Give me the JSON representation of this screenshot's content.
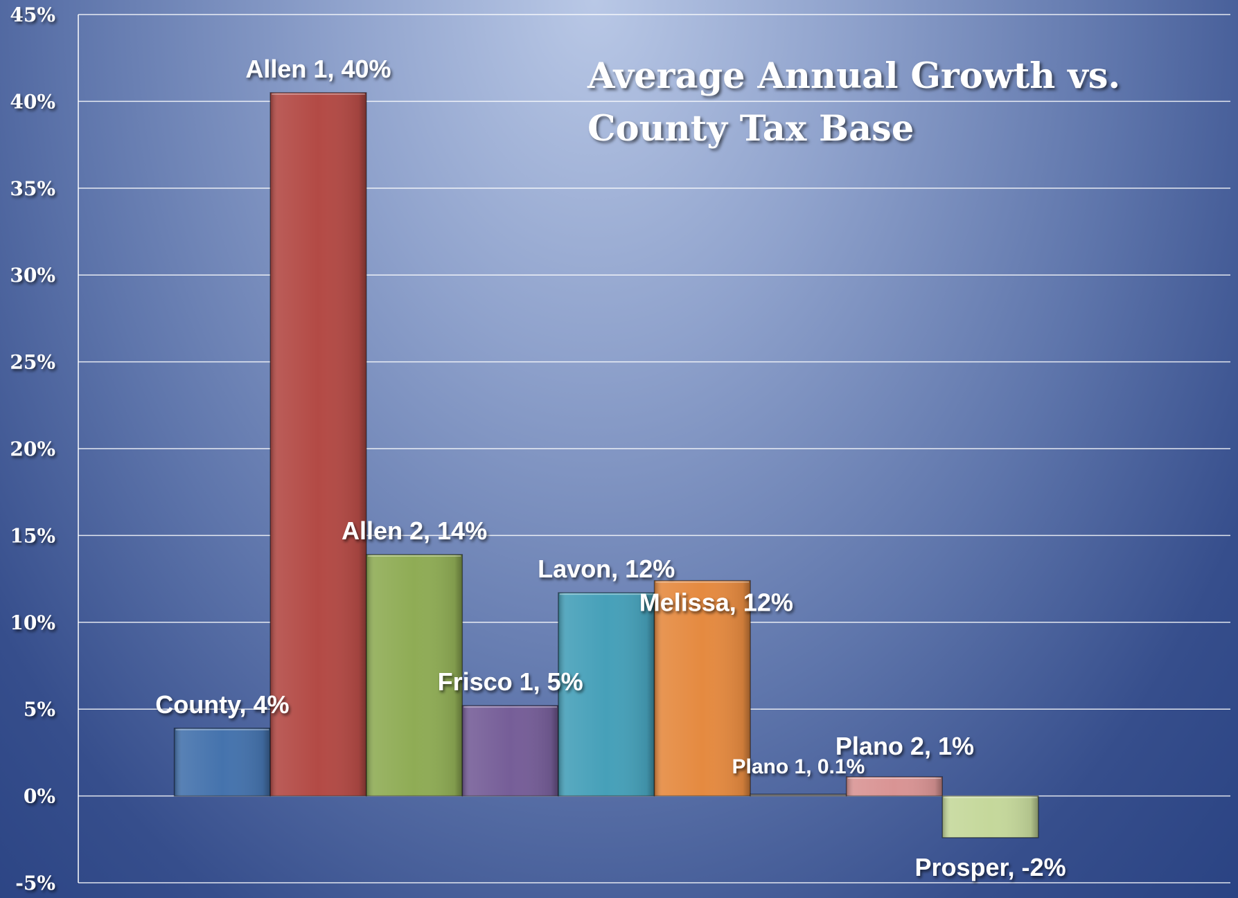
{
  "chart_data": {
    "type": "bar",
    "title_lines": [
      "Average Annual Growth vs.",
      "County Tax Base"
    ],
    "xlabel": "",
    "ylabel": "",
    "ylim": [
      -5,
      45
    ],
    "y_ticks": [
      {
        "value": -5,
        "label": "-5%"
      },
      {
        "value": 0,
        "label": "0%"
      },
      {
        "value": 5,
        "label": "5%"
      },
      {
        "value": 10,
        "label": "10%"
      },
      {
        "value": 15,
        "label": "15%"
      },
      {
        "value": 20,
        "label": "20%"
      },
      {
        "value": 25,
        "label": "25%"
      },
      {
        "value": 30,
        "label": "30%"
      },
      {
        "value": 35,
        "label": "35%"
      },
      {
        "value": 40,
        "label": "40%"
      },
      {
        "value": 45,
        "label": "45%"
      }
    ],
    "grid": true,
    "legend": "none",
    "categories": [
      "County",
      "Allen 1",
      "Allen 2",
      "Frisco 1",
      "Lavon",
      "Melissa",
      "Plano 1",
      "Plano 2",
      "Prosper"
    ],
    "values": [
      3.9,
      40.5,
      13.9,
      5.2,
      11.7,
      12.4,
      0.1,
      1.1,
      -2.4
    ],
    "data_labels": [
      "County, 4%",
      "Allen 1, 40%",
      "Allen 2, 14%",
      "Frisco 1, 5%",
      "Lavon, 12%",
      "Melissa, 12%",
      "Plano 1, 0.1%",
      "Plano 2, 1%",
      "Prosper, -2%"
    ],
    "colors": [
      "#4573ad",
      "#b34a45",
      "#8fac55",
      "#765e98",
      "#46a0b9",
      "#e58a40",
      "#888888",
      "#d99494",
      "#c5d89b"
    ]
  }
}
